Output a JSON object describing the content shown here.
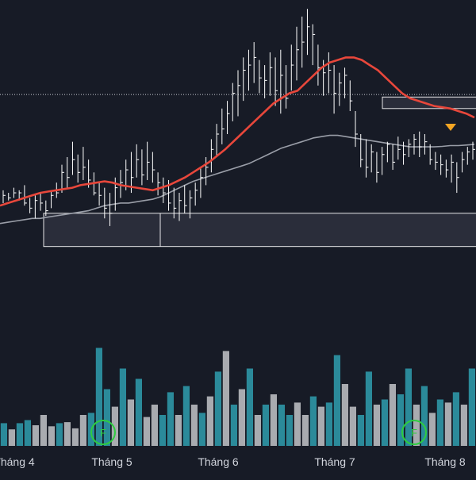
{
  "colors": {
    "background": "#171b26",
    "price_bar": "#ffffff",
    "ema_fast": "#e8473b",
    "ema_slow": "#9a9ea8",
    "volume_up": "#2b8a9a",
    "volume_down": "#a9abb0",
    "zone_fill": "#2a2d3a",
    "zone_border": "#e8e8ea",
    "marker": "#f5a623",
    "event_badge": "#2ecc40",
    "axis_text": "#d1d4dc",
    "price_line": "#c9cbd3"
  },
  "icons": {
    "event_badge": "circle-letter-icon",
    "down_marker": "triangle-down-icon"
  },
  "chart_data": {
    "type": "bar",
    "x_axis_labels": [
      "Tháng 4",
      "Tháng 5",
      "Tháng 6",
      "Tháng 7",
      "Tháng 8"
    ],
    "event_badges": [
      {
        "letter": "F",
        "after_month": "Tháng 4"
      },
      {
        "letter": "F",
        "after_month": "Tháng 7"
      }
    ],
    "price_series": [
      [
        12.1,
        11.6,
        11.9
      ],
      [
        12.0,
        11.7,
        11.8
      ],
      [
        12.2,
        11.8,
        12.0
      ],
      [
        12.1,
        11.7,
        12.0
      ],
      [
        12.3,
        11.5,
        11.6
      ],
      [
        11.8,
        11.2,
        11.4
      ],
      [
        11.9,
        11.0,
        11.7
      ],
      [
        12.0,
        11.3,
        11.6
      ],
      [
        11.7,
        11.1,
        11.3
      ],
      [
        12.1,
        11.4,
        11.9
      ],
      [
        12.4,
        11.8,
        12.0
      ],
      [
        13.1,
        12.0,
        12.8
      ],
      [
        13.4,
        12.2,
        12.6
      ],
      [
        14.0,
        12.7,
        13.3
      ],
      [
        13.5,
        12.4,
        12.8
      ],
      [
        13.8,
        12.5,
        13.0
      ],
      [
        13.3,
        12.2,
        12.5
      ],
      [
        12.8,
        11.9,
        12.0
      ],
      [
        12.4,
        11.5,
        11.9
      ],
      [
        12.2,
        11.0,
        11.4
      ],
      [
        12.0,
        10.7,
        11.2
      ],
      [
        12.6,
        11.3,
        12.2
      ],
      [
        12.9,
        11.8,
        12.4
      ],
      [
        13.3,
        12.1,
        12.9
      ],
      [
        13.6,
        12.0,
        12.6
      ],
      [
        13.9,
        12.6,
        13.3
      ],
      [
        13.7,
        12.3,
        12.7
      ],
      [
        14.0,
        12.5,
        13.2
      ],
      [
        13.6,
        12.4,
        12.9
      ],
      [
        12.8,
        11.9,
        12.4
      ],
      [
        12.6,
        11.6,
        12.0
      ],
      [
        12.5,
        11.3,
        11.6
      ],
      [
        12.2,
        11.0,
        11.4
      ],
      [
        12.0,
        10.9,
        11.7
      ],
      [
        12.3,
        11.2,
        11.5
      ],
      [
        12.1,
        11.0,
        11.8
      ],
      [
        12.4,
        11.5,
        12.1
      ],
      [
        13.0,
        11.8,
        12.6
      ],
      [
        13.4,
        12.3,
        13.0
      ],
      [
        14.1,
        12.8,
        13.7
      ],
      [
        14.7,
        13.4,
        14.3
      ],
      [
        15.3,
        13.9,
        14.5
      ],
      [
        15.6,
        14.3,
        15.1
      ],
      [
        16.3,
        14.8,
        15.9
      ],
      [
        16.8,
        15.0,
        16.2
      ],
      [
        17.3,
        15.6,
        16.8
      ],
      [
        17.6,
        16.0,
        17.0
      ],
      [
        17.9,
        16.3,
        17.3
      ],
      [
        17.2,
        15.9,
        16.5
      ],
      [
        17.0,
        15.7,
        16.4
      ],
      [
        17.5,
        15.8,
        16.9
      ],
      [
        17.3,
        15.4,
        16.0
      ],
      [
        17.6,
        15.1,
        16.6
      ],
      [
        17.0,
        15.3,
        15.7
      ],
      [
        17.8,
        16.0,
        17.0
      ],
      [
        18.5,
        16.4,
        17.6
      ],
      [
        18.9,
        16.9,
        17.9
      ],
      [
        19.2,
        17.4,
        18.5
      ],
      [
        18.6,
        17.0,
        18.2
      ],
      [
        17.8,
        16.2,
        16.9
      ],
      [
        17.2,
        15.8,
        16.7
      ],
      [
        17.5,
        15.9,
        16.8
      ],
      [
        17.0,
        15.1,
        15.9
      ],
      [
        16.7,
        15.4,
        16.3
      ],
      [
        16.9,
        15.7,
        16.6
      ],
      [
        16.4,
        15.2,
        15.6
      ],
      [
        15.2,
        13.8,
        14.3
      ],
      [
        14.3,
        13.0,
        13.3
      ],
      [
        14.1,
        12.6,
        13.0
      ],
      [
        13.9,
        12.8,
        13.6
      ],
      [
        13.6,
        12.4,
        12.8
      ],
      [
        13.8,
        12.7,
        13.5
      ],
      [
        14.0,
        13.2,
        13.9
      ],
      [
        13.9,
        12.9,
        13.2
      ],
      [
        14.2,
        13.3,
        13.7
      ],
      [
        14.0,
        13.1,
        13.5
      ],
      [
        14.1,
        13.4,
        13.9
      ],
      [
        14.3,
        13.5,
        14.1
      ],
      [
        14.4,
        13.4,
        13.8
      ],
      [
        14.3,
        13.5,
        14.0
      ],
      [
        13.9,
        13.1,
        13.3
      ],
      [
        13.6,
        12.9,
        13.2
      ],
      [
        13.5,
        12.7,
        13.1
      ],
      [
        13.3,
        12.6,
        12.9
      ],
      [
        13.5,
        12.4,
        13.2
      ],
      [
        13.2,
        12.0,
        12.6
      ],
      [
        13.6,
        12.8,
        13.3
      ],
      [
        13.8,
        13.1,
        13.6
      ],
      [
        14.0,
        13.3,
        13.7
      ]
    ],
    "ema_fast": [
      11.5,
      11.6,
      11.7,
      11.8,
      11.9,
      12.0,
      12.05,
      12.1,
      12.15,
      12.2,
      12.3,
      12.35,
      12.4,
      12.45,
      12.4,
      12.3,
      12.25,
      12.2,
      12.15,
      12.1,
      12.2,
      12.3,
      12.45,
      12.6,
      12.8,
      13.0,
      13.2,
      13.45,
      13.7,
      14.0,
      14.3,
      14.6,
      14.9,
      15.2,
      15.5,
      15.7,
      15.9,
      16.0,
      16.3,
      16.6,
      16.9,
      17.1,
      17.2,
      17.3,
      17.3,
      17.2,
      17.0,
      16.8,
      16.5,
      16.2,
      15.9,
      15.7,
      15.6,
      15.5,
      15.4,
      15.35,
      15.3,
      15.2,
      15.1,
      14.95
    ],
    "ema_slow": [
      10.8,
      10.85,
      10.9,
      10.95,
      11.0,
      11.0,
      11.05,
      11.1,
      11.15,
      11.2,
      11.25,
      11.3,
      11.4,
      11.5,
      11.55,
      11.6,
      11.6,
      11.65,
      11.7,
      11.75,
      11.85,
      12.0,
      12.15,
      12.3,
      12.45,
      12.55,
      12.65,
      12.75,
      12.85,
      12.95,
      13.05,
      13.15,
      13.3,
      13.45,
      13.6,
      13.75,
      13.85,
      13.95,
      14.05,
      14.15,
      14.2,
      14.25,
      14.25,
      14.2,
      14.15,
      14.1,
      14.05,
      14.0,
      13.95,
      13.9,
      13.85,
      13.8,
      13.8,
      13.8,
      13.8,
      13.82,
      13.85,
      13.85,
      13.87,
      13.9
    ],
    "reference_price_level": 15.85,
    "zones": [
      {
        "name": "support-zone",
        "price_high": 11.2,
        "price_low": 9.9
      },
      {
        "name": "resistance-zone",
        "price_high": 15.75,
        "price_low": 15.3
      }
    ],
    "volume": [
      [
        0.22,
        1
      ],
      [
        0.16,
        0
      ],
      [
        0.22,
        1
      ],
      [
        0.25,
        1
      ],
      [
        0.2,
        0
      ],
      [
        0.3,
        0
      ],
      [
        0.19,
        0
      ],
      [
        0.22,
        1
      ],
      [
        0.23,
        0
      ],
      [
        0.17,
        0
      ],
      [
        0.3,
        0
      ],
      [
        0.32,
        1
      ],
      [
        0.95,
        1
      ],
      [
        0.55,
        1
      ],
      [
        0.38,
        0
      ],
      [
        0.75,
        1
      ],
      [
        0.45,
        0
      ],
      [
        0.65,
        1
      ],
      [
        0.28,
        0
      ],
      [
        0.4,
        0
      ],
      [
        0.3,
        1
      ],
      [
        0.52,
        1
      ],
      [
        0.3,
        0
      ],
      [
        0.58,
        1
      ],
      [
        0.4,
        0
      ],
      [
        0.32,
        1
      ],
      [
        0.48,
        0
      ],
      [
        0.72,
        1
      ],
      [
        0.92,
        0
      ],
      [
        0.4,
        1
      ],
      [
        0.55,
        0
      ],
      [
        0.75,
        1
      ],
      [
        0.3,
        0
      ],
      [
        0.4,
        1
      ],
      [
        0.5,
        0
      ],
      [
        0.4,
        1
      ],
      [
        0.3,
        1
      ],
      [
        0.42,
        0
      ],
      [
        0.3,
        0
      ],
      [
        0.48,
        1
      ],
      [
        0.38,
        0
      ],
      [
        0.42,
        1
      ],
      [
        0.88,
        1
      ],
      [
        0.6,
        0
      ],
      [
        0.38,
        0
      ],
      [
        0.3,
        1
      ],
      [
        0.72,
        1
      ],
      [
        0.4,
        0
      ],
      [
        0.45,
        1
      ],
      [
        0.6,
        0
      ],
      [
        0.5,
        1
      ],
      [
        0.75,
        1
      ],
      [
        0.4,
        0
      ],
      [
        0.58,
        1
      ],
      [
        0.32,
        0
      ],
      [
        0.45,
        1
      ],
      [
        0.42,
        0
      ],
      [
        0.52,
        1
      ],
      [
        0.4,
        0
      ],
      [
        0.75,
        1
      ]
    ]
  }
}
